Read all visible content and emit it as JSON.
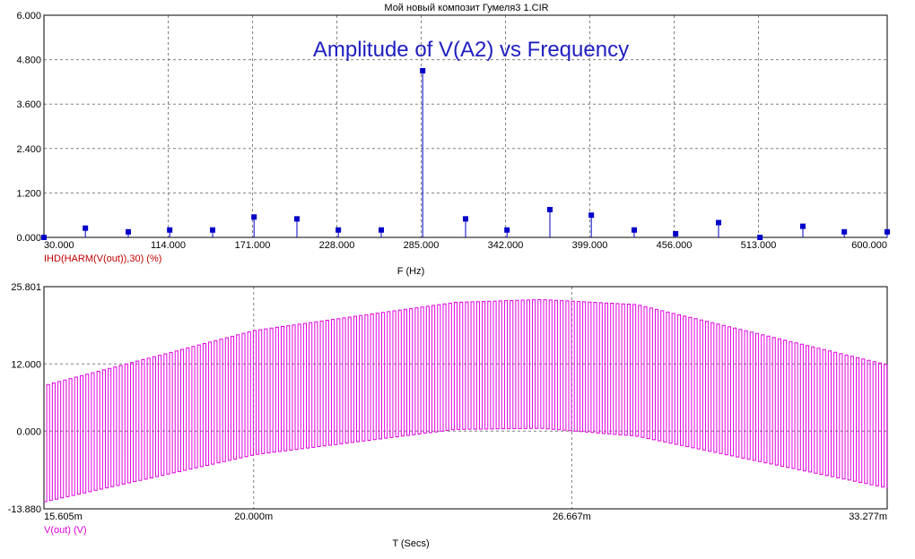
{
  "window_title": "Мой новый композит Гумеля3 1.CIR",
  "colors": {
    "grid": "#808080",
    "axis": "#000000",
    "top_series": "#0000c8",
    "top_legend": "#c00000",
    "bottom_series": "#e000e0",
    "annotation": "#2020c0"
  },
  "chart_data": [
    {
      "type": "bar",
      "subtype": "stem",
      "title": "",
      "annotation": "Amplitude of V(A2) vs Frequency",
      "xlabel": "F (Hz)",
      "ylabel": "",
      "series_label": "IHD(HARM(V(out)),30) (%)",
      "xlim": [
        30,
        600
      ],
      "ylim": [
        0,
        6
      ],
      "grid": true,
      "x_ticks": [
        "30.000",
        "114.000",
        "171.000",
        "228.000",
        "285.000",
        "342.000",
        "399.000",
        "456.000",
        "513.000",
        "600.000"
      ],
      "x_tick_values": [
        30,
        114,
        171,
        228,
        285,
        342,
        399,
        456,
        513,
        600
      ],
      "y_ticks": [
        "0.000",
        "1.200",
        "2.400",
        "3.600",
        "4.800",
        "6.000"
      ],
      "y_tick_values": [
        0,
        1.2,
        2.4,
        3.6,
        4.8,
        6.0
      ],
      "series": [
        {
          "name": "IHD(HARM(V(out)),30) (%)",
          "x": [
            30,
            87,
            144,
            201,
            258,
            315,
            372,
            429,
            486,
            543,
            600
          ],
          "values": [
            0.0,
            0.15,
            0.2,
            0.5,
            0.2,
            0.5,
            0.75,
            0.2,
            0.4,
            0.3,
            0.15
          ]
        },
        {
          "name": "",
          "x": [
            58,
            115,
            172,
            229,
            286,
            343,
            400,
            457,
            514,
            571
          ],
          "values": [
            0.25,
            0.2,
            0.55,
            0.2,
            4.5,
            0.2,
            0.6,
            0.1,
            0.0,
            0.15
          ]
        }
      ]
    },
    {
      "type": "line",
      "title": "",
      "xlabel": "T (Secs)",
      "ylabel": "",
      "series_label": "V(out) (V)",
      "xlim": [
        15.605,
        33.277
      ],
      "x_unit_suffix": "m",
      "ylim": [
        -13.88,
        25.801
      ],
      "grid": true,
      "x_ticks": [
        "15.605m",
        "20.000m",
        "26.667m",
        "33.277m"
      ],
      "x_tick_values": [
        15.605,
        20.0,
        26.667,
        33.277
      ],
      "y_ticks": [
        "-13.880",
        "0.000",
        "12.000",
        "25.801"
      ],
      "y_tick_values": [
        -13.88,
        0.0,
        12.0,
        25.801
      ],
      "series": [
        {
          "name": "V(out) (V)",
          "description": "square wave of ~0.117m period whose upper envelope rises from about 8 to 23.5 near 26m and falls to about 12; lower envelope from about -12.5 up to about 0.5 and back to -10",
          "period": 0.117,
          "upper_envelope": {
            "x": [
              15.605,
              20.0,
              24.2,
              26.0,
              28.0,
              33.277
            ],
            "y": [
              8.2,
              18.0,
              23.0,
              23.5,
              22.6,
              11.8
            ]
          },
          "lower_envelope": {
            "x": [
              15.605,
              20.0,
              24.2,
              26.0,
              28.0,
              33.277
            ],
            "y": [
              -12.6,
              -4.2,
              0.3,
              0.5,
              -0.9,
              -10.2
            ]
          }
        }
      ]
    }
  ]
}
